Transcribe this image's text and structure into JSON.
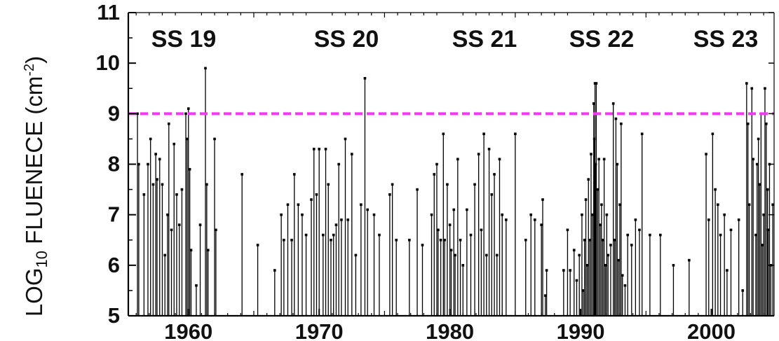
{
  "chart_data": {
    "type": "bar",
    "ylabel": {
      "log": "LOG",
      "sub": "10",
      "fluence": " FLUENECE (cm",
      "exp": "-2",
      "close": ")"
    },
    "xlim": [
      1955.4,
      2004.8
    ],
    "ylim": [
      5,
      11
    ],
    "yticks": [
      "5",
      "6",
      "7",
      "8",
      "9",
      "10",
      "11"
    ],
    "xticks": [
      "1960",
      "1970",
      "1980",
      "1990",
      "2000"
    ],
    "threshold": {
      "value": 9,
      "color": "#ff33ff",
      "style": "dashed"
    },
    "cycle_labels": [
      "SS 19",
      "SS 20",
      "SS 21",
      "SS 22",
      "SS 23"
    ],
    "bar_color": "#000000",
    "events": [
      [
        1956.1,
        9.0
      ],
      [
        1956.2,
        8.0
      ],
      [
        1956.6,
        7.4
      ],
      [
        1956.9,
        8.0
      ],
      [
        1957.1,
        8.5
      ],
      [
        1957.3,
        7.6
      ],
      [
        1957.5,
        8.2
      ],
      [
        1957.6,
        7.7
      ],
      [
        1957.8,
        8.1
      ],
      [
        1958.0,
        7.6
      ],
      [
        1958.2,
        6.2
      ],
      [
        1958.4,
        7.0
      ],
      [
        1958.5,
        8.8
      ],
      [
        1958.7,
        6.7
      ],
      [
        1958.9,
        8.4
      ],
      [
        1959.1,
        7.4
      ],
      [
        1959.3,
        6.8
      ],
      [
        1959.5,
        7.5
      ],
      [
        1959.8,
        9.0
      ],
      [
        1959.9,
        8.5
      ],
      [
        1960.0,
        9.1
      ],
      [
        1960.1,
        7.9
      ],
      [
        1960.2,
        6.3
      ],
      [
        1960.6,
        5.6
      ],
      [
        1960.9,
        6.8
      ],
      [
        1961.3,
        9.9
      ],
      [
        1961.4,
        7.6
      ],
      [
        1961.5,
        6.3
      ],
      [
        1962.0,
        8.5
      ],
      [
        1962.1,
        6.7
      ],
      [
        1964.1,
        7.8
      ],
      [
        1965.3,
        6.4
      ],
      [
        1966.6,
        5.9
      ],
      [
        1967.1,
        7.0
      ],
      [
        1967.3,
        6.5
      ],
      [
        1967.6,
        7.2
      ],
      [
        1967.9,
        6.5
      ],
      [
        1968.1,
        7.8
      ],
      [
        1968.4,
        7.2
      ],
      [
        1968.7,
        7.0
      ],
      [
        1969.0,
        6.6
      ],
      [
        1969.4,
        7.3
      ],
      [
        1969.6,
        8.3
      ],
      [
        1969.8,
        7.4
      ],
      [
        1970.0,
        8.3
      ],
      [
        1970.3,
        6.6
      ],
      [
        1970.5,
        8.3
      ],
      [
        1970.7,
        7.6
      ],
      [
        1970.9,
        6.5
      ],
      [
        1971.1,
        6.6
      ],
      [
        1971.3,
        6.8
      ],
      [
        1971.5,
        8.0
      ],
      [
        1971.7,
        6.9
      ],
      [
        1972.0,
        8.5
      ],
      [
        1972.2,
        6.9
      ],
      [
        1972.5,
        8.2
      ],
      [
        1972.8,
        6.2
      ],
      [
        1973.2,
        7.2
      ],
      [
        1973.5,
        9.7
      ],
      [
        1973.7,
        7.1
      ],
      [
        1974.2,
        7.0
      ],
      [
        1974.6,
        6.6
      ],
      [
        1975.4,
        7.4
      ],
      [
        1975.6,
        7.6
      ],
      [
        1975.9,
        6.5
      ],
      [
        1976.9,
        6.5
      ],
      [
        1977.5,
        7.5
      ],
      [
        1977.9,
        6.4
      ],
      [
        1978.6,
        7.0
      ],
      [
        1978.8,
        7.8
      ],
      [
        1979.0,
        8.0
      ],
      [
        1979.1,
        6.7
      ],
      [
        1979.3,
        6.5
      ],
      [
        1979.5,
        8.6
      ],
      [
        1979.6,
        6.5
      ],
      [
        1979.8,
        7.6
      ],
      [
        1980.0,
        6.8
      ],
      [
        1980.1,
        6.3
      ],
      [
        1980.3,
        7.1
      ],
      [
        1980.4,
        6.2
      ],
      [
        1980.6,
        8.1
      ],
      [
        1980.8,
        6.5
      ],
      [
        1981.0,
        6.0
      ],
      [
        1981.3,
        7.1
      ],
      [
        1981.6,
        6.6
      ],
      [
        1981.9,
        7.6
      ],
      [
        1982.2,
        8.2
      ],
      [
        1982.4,
        6.7
      ],
      [
        1982.6,
        8.6
      ],
      [
        1982.8,
        6.2
      ],
      [
        1983.0,
        8.3
      ],
      [
        1983.2,
        7.4
      ],
      [
        1983.4,
        7.8
      ],
      [
        1983.6,
        6.2
      ],
      [
        1983.8,
        8.1
      ],
      [
        1984.0,
        7.0
      ],
      [
        1984.3,
        6.9
      ],
      [
        1985.0,
        8.6
      ],
      [
        1985.8,
        6.5
      ],
      [
        1986.2,
        7.0
      ],
      [
        1986.5,
        6.9
      ],
      [
        1987.0,
        6.8
      ],
      [
        1987.1,
        7.3
      ],
      [
        1987.3,
        5.4
      ],
      [
        1987.4,
        5.9
      ],
      [
        1988.7,
        5.9
      ],
      [
        1989.0,
        6.7
      ],
      [
        1989.2,
        5.9
      ],
      [
        1989.5,
        6.3
      ],
      [
        1989.7,
        5.7
      ],
      [
        1989.9,
        6.2
      ],
      [
        1990.1,
        7.0
      ],
      [
        1990.2,
        5.5
      ],
      [
        1990.3,
        6.5
      ],
      [
        1990.4,
        7.3
      ],
      [
        1990.5,
        6.0
      ],
      [
        1990.6,
        7.7
      ],
      [
        1990.7,
        6.5
      ],
      [
        1990.8,
        8.2
      ],
      [
        1990.9,
        7.0
      ],
      [
        1991.0,
        9.2
      ],
      [
        1991.05,
        8.5
      ],
      [
        1991.1,
        9.6
      ],
      [
        1991.15,
        8.0
      ],
      [
        1991.2,
        9.6
      ],
      [
        1991.3,
        7.5
      ],
      [
        1991.4,
        8.1
      ],
      [
        1991.5,
        6.8
      ],
      [
        1991.6,
        7.2
      ],
      [
        1991.7,
        6.5
      ],
      [
        1991.8,
        8.1
      ],
      [
        1991.9,
        6.0
      ],
      [
        1992.0,
        7.0
      ],
      [
        1992.1,
        6.2
      ],
      [
        1992.3,
        6.4
      ],
      [
        1992.5,
        9.2
      ],
      [
        1992.6,
        6.5
      ],
      [
        1992.7,
        8.9
      ],
      [
        1992.8,
        8.0
      ],
      [
        1992.9,
        6.1
      ],
      [
        1993.0,
        7.2
      ],
      [
        1993.1,
        8.8
      ],
      [
        1993.2,
        5.8
      ],
      [
        1993.4,
        5.6
      ],
      [
        1993.6,
        6.6
      ],
      [
        1993.9,
        6.4
      ],
      [
        1994.2,
        6.9
      ],
      [
        1994.5,
        6.7
      ],
      [
        1994.7,
        8.6
      ],
      [
        1995.3,
        6.6
      ],
      [
        1996.1,
        6.6
      ],
      [
        1997.1,
        6.0
      ],
      [
        1998.3,
        6.1
      ],
      [
        1999.6,
        8.2
      ],
      [
        1999.8,
        6.9
      ],
      [
        2000.1,
        8.6
      ],
      [
        2000.3,
        7.5
      ],
      [
        2000.5,
        7.2
      ],
      [
        2000.7,
        6.6
      ],
      [
        2001.0,
        7.0
      ],
      [
        2001.2,
        5.9
      ],
      [
        2001.5,
        6.7
      ],
      [
        2002.1,
        6.9
      ],
      [
        2002.4,
        5.5
      ],
      [
        2002.7,
        9.6
      ],
      [
        2002.8,
        8.8
      ],
      [
        2002.9,
        7.2
      ],
      [
        2003.1,
        9.5
      ],
      [
        2003.2,
        8.1
      ],
      [
        2003.4,
        6.6
      ],
      [
        2003.5,
        8.0
      ],
      [
        2003.6,
        8.5
      ],
      [
        2003.7,
        7.6
      ],
      [
        2003.8,
        9.0
      ],
      [
        2003.9,
        6.4
      ],
      [
        2004.0,
        7.0
      ],
      [
        2004.1,
        9.5
      ],
      [
        2004.2,
        8.8
      ],
      [
        2004.3,
        7.5
      ],
      [
        2004.35,
        6.7
      ],
      [
        2004.45,
        8.0
      ],
      [
        2004.55,
        6.0
      ],
      [
        2004.7,
        7.2
      ]
    ]
  }
}
